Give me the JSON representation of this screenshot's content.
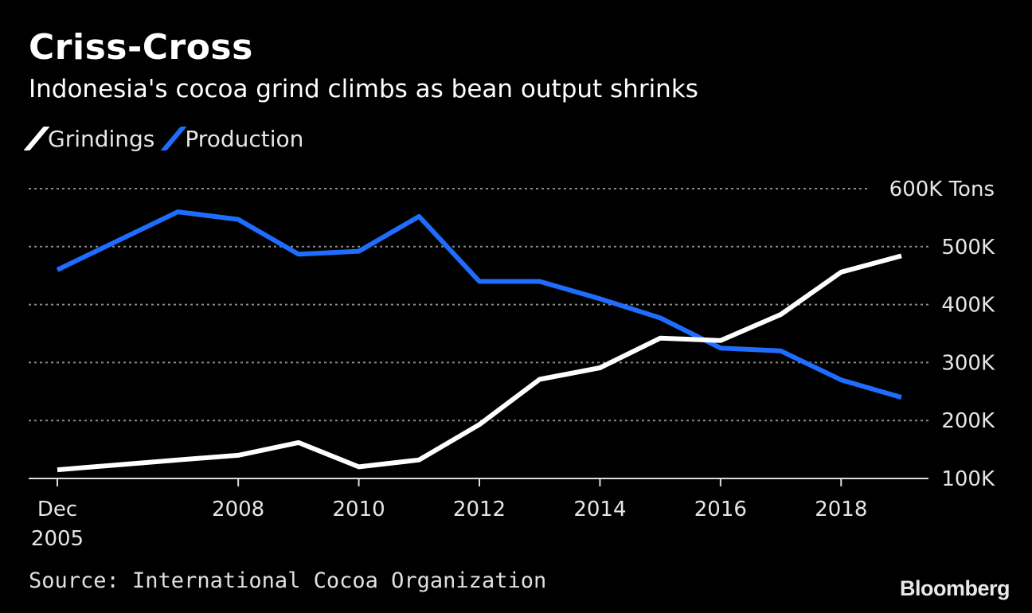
{
  "header": {
    "title": "Criss-Cross",
    "subtitle": "Indonesia's cocoa grind climbs as bean output shrinks"
  },
  "footer": {
    "source": "Source: International Cocoa Organization",
    "logo": "Bloomberg"
  },
  "colors": {
    "background": "#000000",
    "grindings": "#ffffff",
    "production": "#1f6dff",
    "grid": "#8a8a8a"
  },
  "chart_data": {
    "type": "line",
    "title": "Criss-Cross",
    "subtitle": "Indonesia's cocoa grind climbs as bean output shrinks",
    "x": [
      2005,
      2007,
      2008,
      2009,
      2010,
      2011,
      2012,
      2013,
      2014,
      2015,
      2016,
      2017,
      2018,
      2019
    ],
    "x_tick_values": [
      2005,
      2008,
      2010,
      2012,
      2014,
      2016,
      2018
    ],
    "x_tick_labels": [
      "Dec\n2005",
      "2008",
      "2010",
      "2012",
      "2014",
      "2016",
      "2018"
    ],
    "y_tick_values": [
      100000,
      200000,
      300000,
      400000,
      500000,
      600000
    ],
    "y_tick_labels": [
      "100K",
      "200K",
      "300K",
      "400K",
      "500K",
      "600K Tons"
    ],
    "ylim": [
      100000,
      600000
    ],
    "xlim": [
      2005,
      2019
    ],
    "ylabel": "",
    "xlabel": "",
    "legend_position": "top-left",
    "grid": "horizontal dotted",
    "series": [
      {
        "name": "Grindings",
        "color": "#ffffff",
        "values": [
          115000,
          132000,
          140000,
          162000,
          120000,
          132000,
          193000,
          271000,
          291000,
          342000,
          338000,
          383000,
          456000,
          484000
        ]
      },
      {
        "name": "Production",
        "color": "#1f6dff",
        "values": [
          460000,
          560000,
          547000,
          487000,
          492000,
          552000,
          440000,
          440000,
          410000,
          377000,
          325000,
          320000,
          270000,
          240000
        ]
      }
    ]
  }
}
